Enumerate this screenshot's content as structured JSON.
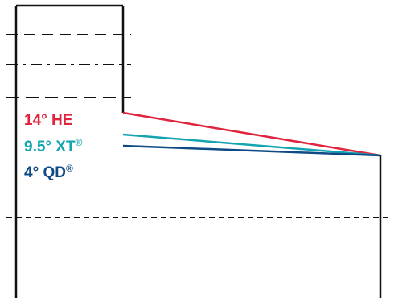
{
  "diagram": {
    "colors": {
      "outline": "#111111",
      "he": "#e0243e",
      "xt": "#13a4b0",
      "qd": "#0e4a85"
    },
    "labels": {
      "he": {
        "text": "14° HE",
        "mark": ""
      },
      "xt": {
        "text": "9.5° XT",
        "mark": "®"
      },
      "qd": {
        "text": "4° QD",
        "mark": "®"
      }
    }
  }
}
